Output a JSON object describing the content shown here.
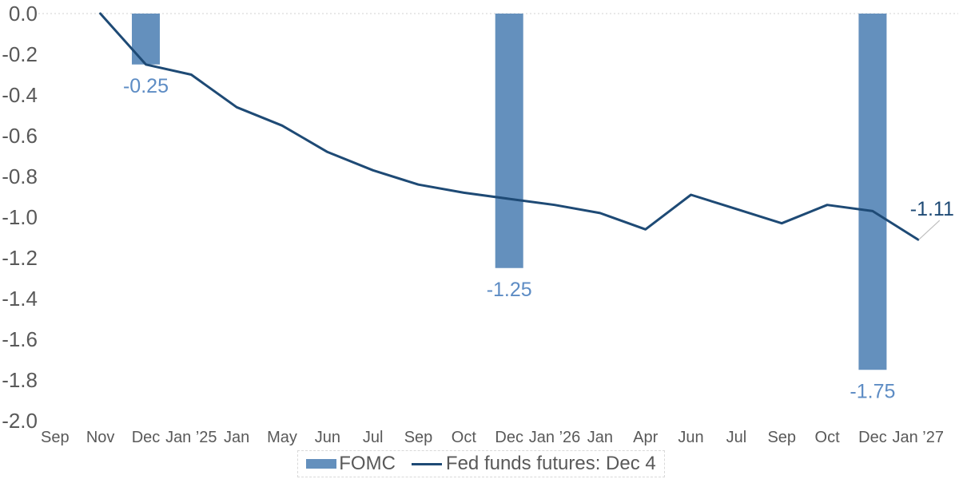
{
  "chart_data": {
    "type": "combo_bar_line",
    "categories": [
      "Sep",
      "Nov",
      "Dec",
      "Jan ’25",
      "Jan",
      "May",
      "Jun",
      "Jul",
      "Sep",
      "Oct",
      "Dec",
      "Jan ’26",
      "Jan",
      "Apr",
      "Jun",
      "Jul",
      "Sep",
      "Oct",
      "Dec",
      "Jan ’27"
    ],
    "series": [
      {
        "name": "FOMC",
        "type": "bar",
        "values": [
          null,
          null,
          -0.25,
          null,
          null,
          null,
          null,
          null,
          null,
          null,
          -1.25,
          null,
          null,
          null,
          null,
          null,
          null,
          null,
          -1.75,
          null
        ],
        "data_labels": [
          {
            "index": 2,
            "text": "-0.25"
          },
          {
            "index": 10,
            "text": "-1.25"
          },
          {
            "index": 18,
            "text": "-1.75"
          }
        ]
      },
      {
        "name": "Fed funds futures: Dec 4",
        "type": "line",
        "values": [
          null,
          0.0,
          -0.25,
          -0.3,
          -0.46,
          -0.55,
          -0.68,
          -0.77,
          -0.84,
          -0.88,
          -0.91,
          -0.94,
          -0.98,
          -1.06,
          -0.89,
          -0.96,
          -1.03,
          -0.94,
          -0.97,
          -1.11
        ]
      }
    ],
    "end_annotation": {
      "text": "-1.11",
      "category_index": 19
    },
    "y_axis": {
      "min": -2.0,
      "max": 0.0,
      "step": 0.2,
      "tick_labels": [
        "0.0",
        "-0.2",
        "-0.4",
        "-0.6",
        "-0.8",
        "-1.0",
        "-1.2",
        "-1.4",
        "-1.6",
        "-1.8",
        "-2.0"
      ]
    },
    "grid": {
      "zero_line_only": true,
      "zero_line_style": "dotted"
    },
    "legend": {
      "position": "bottom-center",
      "entries": [
        {
          "label": "FOMC",
          "swatch": "bar"
        },
        {
          "label": "Fed funds futures: Dec 4",
          "swatch": "line"
        }
      ]
    }
  },
  "colors": {
    "bar": "#6490bd",
    "bar_label": "#5d8cc4",
    "line": "#1e4a75",
    "annotation": "#1e4a75",
    "axis_text": "#595959",
    "grid_line": "#d9d9d9",
    "leader_line": "#c0c0c0",
    "legend_border": "#d9d9d9",
    "legend_text": "#595959",
    "background": "#ffffff"
  }
}
